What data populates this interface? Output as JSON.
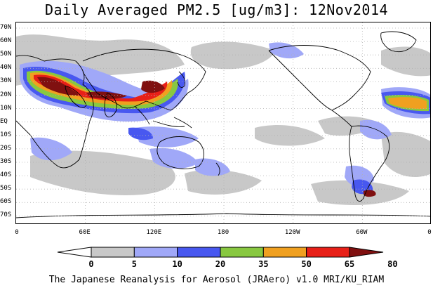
{
  "title": "Daily Averaged PM2.5 [ug/m3]: 12Nov2014",
  "footer": "The Japanese Reanalysis for Aerosol (JRAero) v1.0 MRI/KU_RIAM",
  "map": {
    "lat_labels": [
      "70N",
      "60N",
      "50N",
      "40N",
      "30N",
      "20N",
      "10N",
      "EQ",
      "10S",
      "20S",
      "30S",
      "40S",
      "50S",
      "60S",
      "70S"
    ],
    "lon_labels": [
      "0",
      "60E",
      "120E",
      "180",
      "120W",
      "60W",
      "0"
    ],
    "ocean_color": "#ffffff",
    "coast_color": "#000000",
    "grid_color": "#b0b0b0"
  },
  "colorbar": {
    "levels": [
      "0",
      "5",
      "10",
      "20",
      "35",
      "50",
      "65",
      "80"
    ],
    "colors": [
      "#ffffff",
      "#c8c8c8",
      "#a0a8f8",
      "#4858f0",
      "#88c840",
      "#f0a020",
      "#e82018",
      "#801010"
    ],
    "edge_color": "#000000"
  }
}
